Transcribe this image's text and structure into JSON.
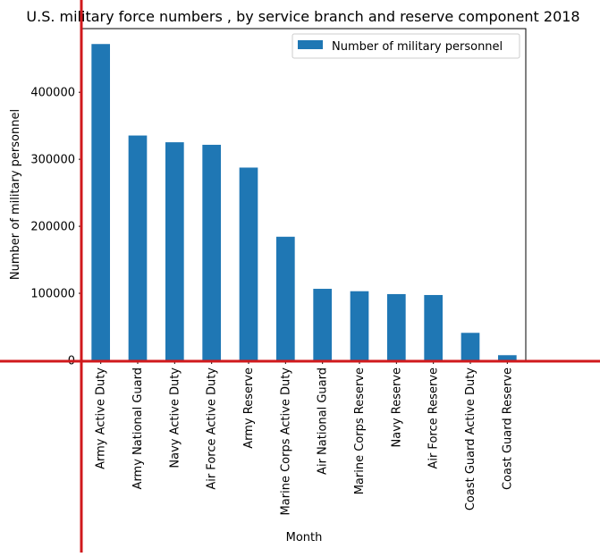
{
  "chart_data": {
    "type": "bar",
    "title": "U.S. military force numbers , by service branch and reserve component 2018",
    "xlabel": "Month",
    "ylabel": "Number of military personnel",
    "categories": [
      "Army Active Duty",
      "Army National Guard",
      "Navy Active Duty",
      "Air Force Active Duty",
      "Army Reserve",
      "Marine Corps Active Duty",
      "Air National Guard",
      "Marine Corps Reserve",
      "Navy Reserve",
      "Air Force Reserve",
      "Coast Guard Active Duty",
      "Coast Guard Reserve"
    ],
    "series": [
      {
        "name": "Number of military personnel",
        "values": [
          471990,
          335475,
          325395,
          321618,
          287595,
          184401,
          106698,
          103109,
          98805,
          97433,
          40992,
          7640
        ]
      }
    ],
    "ylim": [
      0,
      495000
    ],
    "yticks": [
      0,
      100000,
      200000,
      300000,
      400000
    ],
    "grid": false,
    "legend_position": "top-right",
    "bar_color": "#1f77b4",
    "guide_line_color": "#d0191c"
  }
}
